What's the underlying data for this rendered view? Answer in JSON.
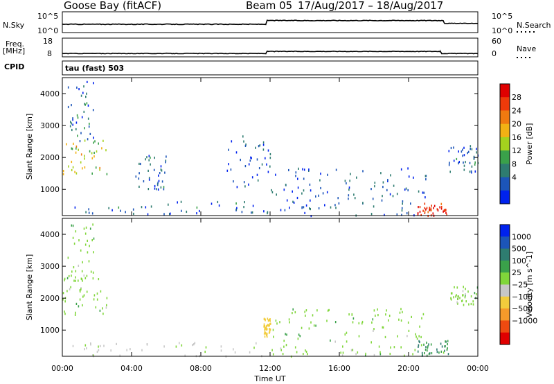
{
  "header": {
    "site": "Goose Bay (fitACF)",
    "beam": "Beam 05",
    "dates": "17/Aug/2017 – 18/Aug/2017"
  },
  "strips": {
    "nsky_label": "N.Sky",
    "nsky_ticks": [
      "10^5",
      "10^0"
    ],
    "nsearch_label": "N.Search",
    "nsearch_ticks": [
      "10^5",
      "10^0"
    ],
    "freq_label": "Freq.",
    "freq_unit": "[MHz]",
    "freq_ticks": [
      "18",
      "8"
    ],
    "nave_label": "Nave",
    "nave_ticks": [
      "60",
      "0"
    ],
    "cpid_label": "CPID",
    "cpid_text": "tau (fast) 503"
  },
  "colors": {
    "power_scale": [
      "#0022ee",
      "#1c55b8",
      "#2e7c70",
      "#3aa14a",
      "#a4d21e",
      "#f2b114",
      "#f07a10",
      "#ee3a0a",
      "#e00000"
    ],
    "velocity_scale": [
      "#e00000",
      "#ee4a10",
      "#f59a2a",
      "#f2cc3c",
      "#c7c7c7",
      "#80d63a",
      "#3aa14a",
      "#2e7c70",
      "#1c55b8",
      "#0022ee"
    ],
    "line": "#000000"
  },
  "chart_data": [
    {
      "type": "heatmap",
      "title": "Power",
      "xlabel": "Time UT",
      "ylabel": "Slant Range [km]",
      "xlim": [
        "00:00",
        "24:00"
      ],
      "ylim": [
        180,
        4500
      ],
      "x_ticks": [
        "00:00",
        "04:00",
        "08:00",
        "12:00",
        "16:00",
        "20:00",
        "00:00"
      ],
      "y_ticks": [
        1000,
        2000,
        3000,
        4000
      ],
      "colorbar": {
        "label": "Power [dB]",
        "ticks": [
          "28",
          "24",
          "20",
          "16",
          "12",
          "8",
          "4"
        ],
        "range": [
          0,
          30
        ]
      },
      "echo_regions": [
        {
          "t_start": 0.0,
          "t_end": 2.6,
          "range_start": 1500,
          "range_end": 2700,
          "value": 16
        },
        {
          "t_start": 0.2,
          "t_end": 1.8,
          "range_start": 2500,
          "range_end": 4400,
          "value": 6
        },
        {
          "t_start": 0.5,
          "t_end": 12.0,
          "range_start": 200,
          "range_end": 650,
          "value": 6
        },
        {
          "t_start": 4.0,
          "t_end": 6.0,
          "range_start": 1000,
          "range_end": 2100,
          "value": 6
        },
        {
          "t_start": 9.5,
          "t_end": 12.0,
          "range_start": 1100,
          "range_end": 2700,
          "value": 5
        },
        {
          "t_start": 12.0,
          "t_end": 21.0,
          "range_start": 200,
          "range_end": 1700,
          "value": 5
        },
        {
          "t_start": 20.5,
          "t_end": 22.3,
          "range_start": 200,
          "range_end": 600,
          "value": 26
        },
        {
          "t_start": 22.3,
          "t_end": 24.0,
          "range_start": 1500,
          "range_end": 2400,
          "value": 6
        }
      ]
    },
    {
      "type": "heatmap",
      "title": "Velocity",
      "xlabel": "Time UT",
      "ylabel": "Slant Range [km]",
      "xlim": [
        "00:00",
        "24:00"
      ],
      "ylim": [
        180,
        4500
      ],
      "x_ticks": [
        "00:00",
        "04:00",
        "08:00",
        "12:00",
        "16:00",
        "20:00",
        "00:00"
      ],
      "y_ticks": [
        1000,
        2000,
        3000,
        4000
      ],
      "colorbar": {
        "label": "Velocity [m s^-1]",
        "ticks": [
          "1000",
          "500",
          "100",
          "25",
          "−25",
          "−100",
          "−500",
          "−1000"
        ]
      },
      "echo_regions": [
        {
          "t_start": 0.0,
          "t_end": 2.6,
          "range_start": 1500,
          "range_end": 2700,
          "value": 0
        },
        {
          "t_start": 0.2,
          "t_end": 1.8,
          "range_start": 2500,
          "range_end": 4400,
          "value": 0
        },
        {
          "t_start": 0.5,
          "t_end": 12.0,
          "range_start": 200,
          "range_end": 650,
          "value": -40
        },
        {
          "t_start": 11.6,
          "t_end": 12.0,
          "range_start": 800,
          "range_end": 1400,
          "value": -200
        },
        {
          "t_start": 12.0,
          "t_end": 21.0,
          "range_start": 200,
          "range_end": 1700,
          "value": 0
        },
        {
          "t_start": 20.5,
          "t_end": 22.3,
          "range_start": 200,
          "range_end": 700,
          "value": 120
        },
        {
          "t_start": 22.3,
          "t_end": 24.0,
          "range_start": 1800,
          "range_end": 2400,
          "value": 0
        }
      ]
    },
    {
      "type": "line",
      "title": "N.Sky",
      "xlim": [
        "00:00",
        "24:00"
      ],
      "x": [
        "00:00",
        "11:45",
        "11:50",
        "22:00",
        "22:05",
        "24:00"
      ],
      "values": [
        2.0,
        2.0,
        2.9,
        2.9,
        2.2,
        2.2
      ],
      "ylim": [
        0,
        5
      ],
      "y_scale": "log10"
    },
    {
      "type": "line",
      "title": "Freq.",
      "xlim": [
        "00:00",
        "24:00"
      ],
      "x": [
        "00:00",
        "11:45",
        "11:50",
        "21:50",
        "21:55",
        "24:00"
      ],
      "values": [
        9.8,
        9.8,
        10.9,
        10.9,
        9.8,
        9.8
      ],
      "ylim": [
        8,
        18
      ]
    }
  ]
}
